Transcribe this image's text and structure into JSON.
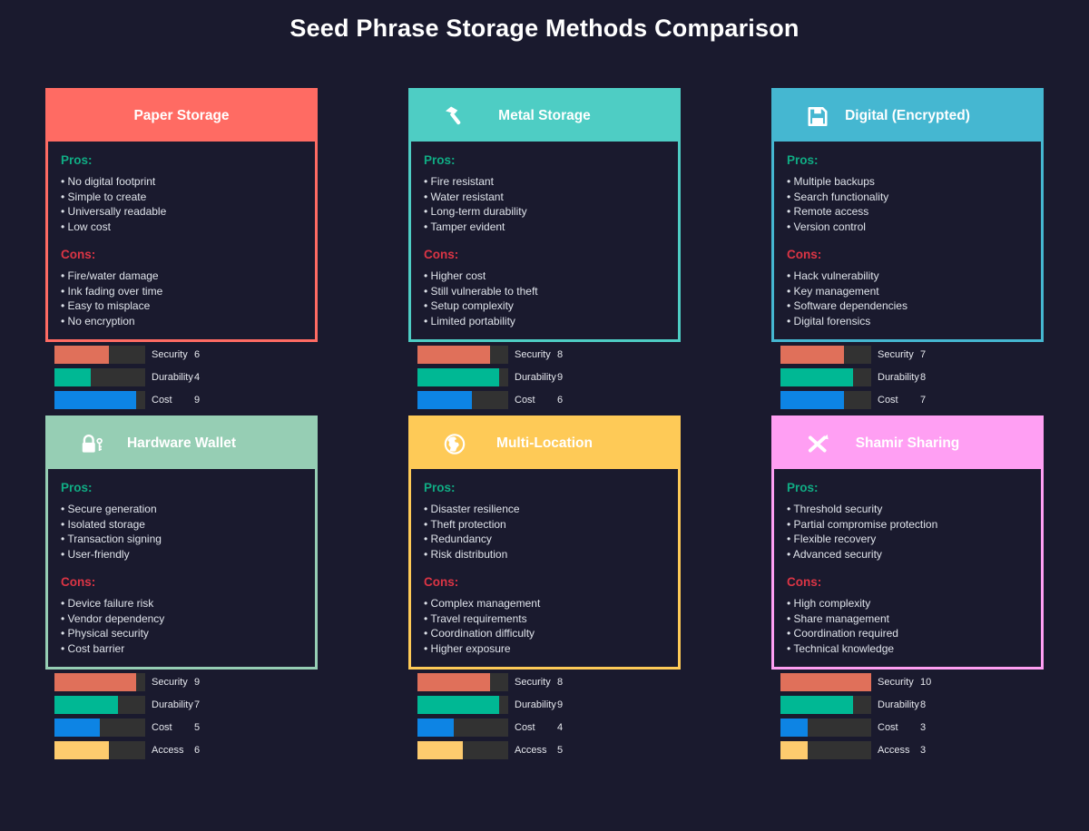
{
  "page_title": "Seed Phrase Storage Methods Comparison",
  "section_labels": {
    "pros": "Pros:",
    "cons": "Cons:"
  },
  "scale_max": 10,
  "colors": {
    "background": "#1a1a2e",
    "title_text": "#ffffff",
    "body_text": "#dfe3ea",
    "pros_heading": "#10ac84",
    "cons_heading": "#dc3545",
    "bar_track": "#323232",
    "metric_colors": {
      "Security": "#e0705a",
      "Durability": "#00b894",
      "Cost": "#0d84e4",
      "Access": "#fdcb6e"
    }
  },
  "cards": [
    {
      "title": "Paper Storage",
      "accent": "#ff6b63",
      "icon": null,
      "pros": [
        "No digital footprint",
        "Simple to create",
        "Universally readable",
        "Low cost"
      ],
      "cons": [
        "Fire/water damage",
        "Ink fading over time",
        "Easy to misplace",
        "No encryption"
      ],
      "metrics": [
        {
          "label": "Security",
          "value": 6
        },
        {
          "label": "Durability",
          "value": 4
        },
        {
          "label": "Cost",
          "value": 9
        }
      ]
    },
    {
      "title": "Metal Storage",
      "accent": "#4ecdc4",
      "icon": "hammer-icon",
      "pros": [
        "Fire resistant",
        "Water resistant",
        "Long-term durability",
        "Tamper evident"
      ],
      "cons": [
        "Higher cost",
        "Still vulnerable to theft",
        "Setup complexity",
        "Limited portability"
      ],
      "metrics": [
        {
          "label": "Security",
          "value": 8
        },
        {
          "label": "Durability",
          "value": 9
        },
        {
          "label": "Cost",
          "value": 6
        }
      ]
    },
    {
      "title": "Digital (Encrypted)",
      "accent": "#45b7d1",
      "icon": "floppy-disk-icon",
      "pros": [
        "Multiple backups",
        "Search functionality",
        "Remote access",
        "Version control"
      ],
      "cons": [
        "Hack vulnerability",
        "Key management",
        "Software dependencies",
        "Digital forensics"
      ],
      "metrics": [
        {
          "label": "Security",
          "value": 7
        },
        {
          "label": "Durability",
          "value": 8
        },
        {
          "label": "Cost",
          "value": 7
        }
      ]
    },
    {
      "title": "Hardware Wallet",
      "accent": "#96ceb4",
      "icon": "lock-key-icon",
      "pros": [
        "Secure generation",
        "Isolated storage",
        "Transaction signing",
        "User-friendly"
      ],
      "cons": [
        "Device failure risk",
        "Vendor dependency",
        "Physical security",
        "Cost barrier"
      ],
      "metrics": [
        {
          "label": "Security",
          "value": 9
        },
        {
          "label": "Durability",
          "value": 7
        },
        {
          "label": "Cost",
          "value": 5
        },
        {
          "label": "Access",
          "value": 6
        }
      ]
    },
    {
      "title": "Multi-Location",
      "accent": "#feca57",
      "icon": "globe-icon",
      "pros": [
        "Disaster resilience",
        "Theft protection",
        "Redundancy",
        "Risk distribution"
      ],
      "cons": [
        "Complex management",
        "Travel requirements",
        "Coordination difficulty",
        "Higher exposure"
      ],
      "metrics": [
        {
          "label": "Security",
          "value": 8
        },
        {
          "label": "Durability",
          "value": 9
        },
        {
          "label": "Cost",
          "value": 4
        },
        {
          "label": "Access",
          "value": 5
        }
      ]
    },
    {
      "title": "Shamir Sharing",
      "accent": "#ff9ff3",
      "icon": "crossed-swords-icon",
      "pros": [
        "Threshold security",
        "Partial compromise protection",
        "Flexible recovery",
        "Advanced security"
      ],
      "cons": [
        "High complexity",
        "Share management",
        "Coordination required",
        "Technical knowledge"
      ],
      "metrics": [
        {
          "label": "Security",
          "value": 10
        },
        {
          "label": "Durability",
          "value": 8
        },
        {
          "label": "Cost",
          "value": 3
        },
        {
          "label": "Access",
          "value": 3
        }
      ]
    }
  ]
}
